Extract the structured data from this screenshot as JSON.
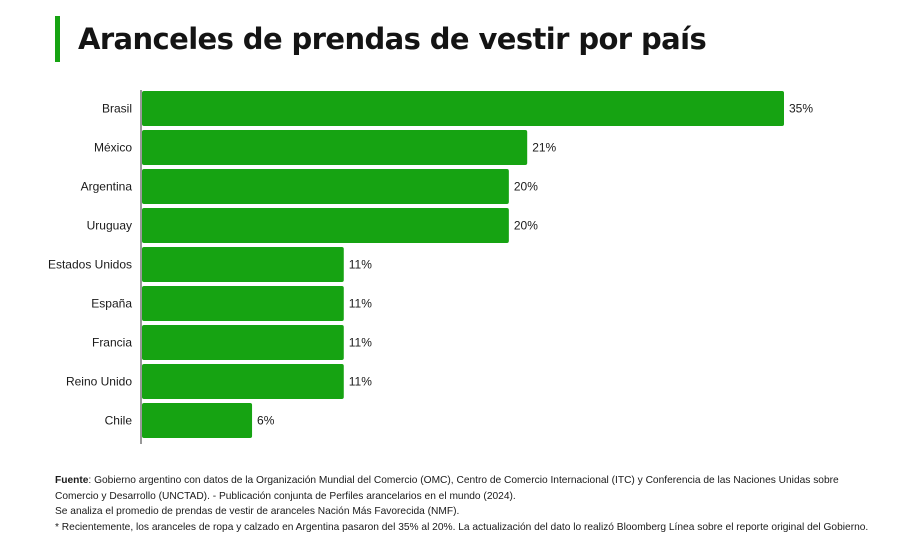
{
  "title": "Aranceles de prendas de vestir por país",
  "accent_color": "#16a312",
  "chart_data": {
    "type": "bar",
    "orientation": "horizontal",
    "title": "Aranceles de prendas de vestir por país",
    "categories": [
      "Brasil",
      "México",
      "Argentina",
      "Uruguay",
      "Estados Unidos",
      "España",
      "Francia",
      "Reino Unido",
      "Chile"
    ],
    "values": [
      35,
      21,
      20,
      20,
      11,
      11,
      11,
      11,
      6
    ],
    "value_labels": [
      "35%",
      "21%",
      "20%",
      "20%",
      "11%",
      "11%",
      "11%",
      "11%",
      "6%"
    ],
    "unit": "%",
    "xlim": [
      0,
      35
    ],
    "bar_color": "#16a312",
    "grid": false,
    "legend": "none"
  },
  "footer": {
    "source_label": "Fuente",
    "source_text": ": Gobierno argentino con datos de la Organización Mundial del Comercio (OMC), Centro de Comercio Internacional (ITC) y Conferencia de las Naciones Unidas sobre Comercio y Desarrollo (UNCTAD). - Publicación conjunta de Perfiles arancelarios en el mundo (2024).",
    "note1": "Se analiza el promedio de prendas de vestir de aranceles Nación Más Favorecida (NMF).",
    "note2": "* Recientemente, los aranceles de ropa y calzado en Argentina pasaron del 35% al 20%. La actualización del dato lo realizó Bloomberg Línea sobre el reporte original del Gobierno."
  }
}
